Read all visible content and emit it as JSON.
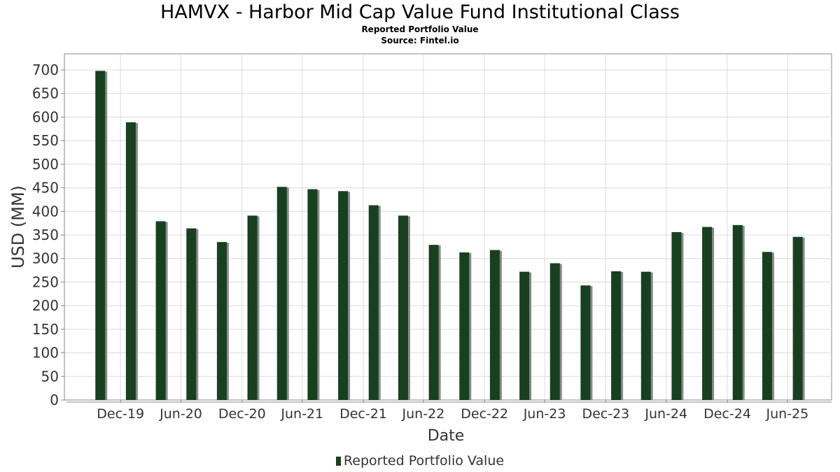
{
  "colors": {
    "bar": "#17401f",
    "bar_shadow": "#8a8a8a",
    "grid": "#dcdcdc",
    "axis": "#888888",
    "text": "#333333"
  },
  "legend": {
    "swatch_icon": "bar-swatch-icon"
  },
  "chart_data": {
    "type": "bar",
    "title": "HAMVX - Harbor Mid Cap Value Fund Institutional Class",
    "subtitle": "Reported Portfolio Value",
    "source": "Source: Fintel.io",
    "xlabel": "Date",
    "ylabel": "USD (MM)",
    "ylim": [
      0,
      700
    ],
    "yticks": [
      0,
      50,
      100,
      150,
      200,
      250,
      300,
      350,
      400,
      450,
      500,
      550,
      600,
      650,
      700
    ],
    "xlim": [
      "2019-07-15",
      "2025-11-10"
    ],
    "xticks": [
      {
        "label": "Dec-19",
        "date": "2019-12-31"
      },
      {
        "label": "Jun-20",
        "date": "2020-06-30"
      },
      {
        "label": "Dec-20",
        "date": "2020-12-31"
      },
      {
        "label": "Jun-21",
        "date": "2021-06-30"
      },
      {
        "label": "Dec-21",
        "date": "2021-12-31"
      },
      {
        "label": "Jun-22",
        "date": "2022-06-30"
      },
      {
        "label": "Dec-22",
        "date": "2022-12-31"
      },
      {
        "label": "Jun-23",
        "date": "2023-06-30"
      },
      {
        "label": "Dec-23",
        "date": "2023-12-31"
      },
      {
        "label": "Jun-24",
        "date": "2024-06-30"
      },
      {
        "label": "Dec-24",
        "date": "2024-12-31"
      },
      {
        "label": "Jun-25",
        "date": "2025-06-30"
      }
    ],
    "grid": true,
    "legend_position": "bottom",
    "series": [
      {
        "name": "Reported Portfolio Value",
        "points": [
          {
            "x": "2019-10-31",
            "y": 698
          },
          {
            "x": "2020-01-31",
            "y": 589
          },
          {
            "x": "2020-04-30",
            "y": 379
          },
          {
            "x": "2020-07-31",
            "y": 364
          },
          {
            "x": "2020-10-31",
            "y": 335
          },
          {
            "x": "2021-01-31",
            "y": 391
          },
          {
            "x": "2021-04-30",
            "y": 452
          },
          {
            "x": "2021-07-31",
            "y": 447
          },
          {
            "x": "2021-10-31",
            "y": 443
          },
          {
            "x": "2022-01-31",
            "y": 413
          },
          {
            "x": "2022-04-30",
            "y": 391
          },
          {
            "x": "2022-07-31",
            "y": 329
          },
          {
            "x": "2022-10-31",
            "y": 313
          },
          {
            "x": "2023-01-31",
            "y": 318
          },
          {
            "x": "2023-04-30",
            "y": 272
          },
          {
            "x": "2023-07-31",
            "y": 290
          },
          {
            "x": "2023-10-31",
            "y": 243
          },
          {
            "x": "2024-01-31",
            "y": 273
          },
          {
            "x": "2024-04-30",
            "y": 272
          },
          {
            "x": "2024-07-31",
            "y": 356
          },
          {
            "x": "2024-10-31",
            "y": 367
          },
          {
            "x": "2025-01-31",
            "y": 371
          },
          {
            "x": "2025-04-30",
            "y": 314
          },
          {
            "x": "2025-07-31",
            "y": 346
          }
        ]
      }
    ]
  }
}
